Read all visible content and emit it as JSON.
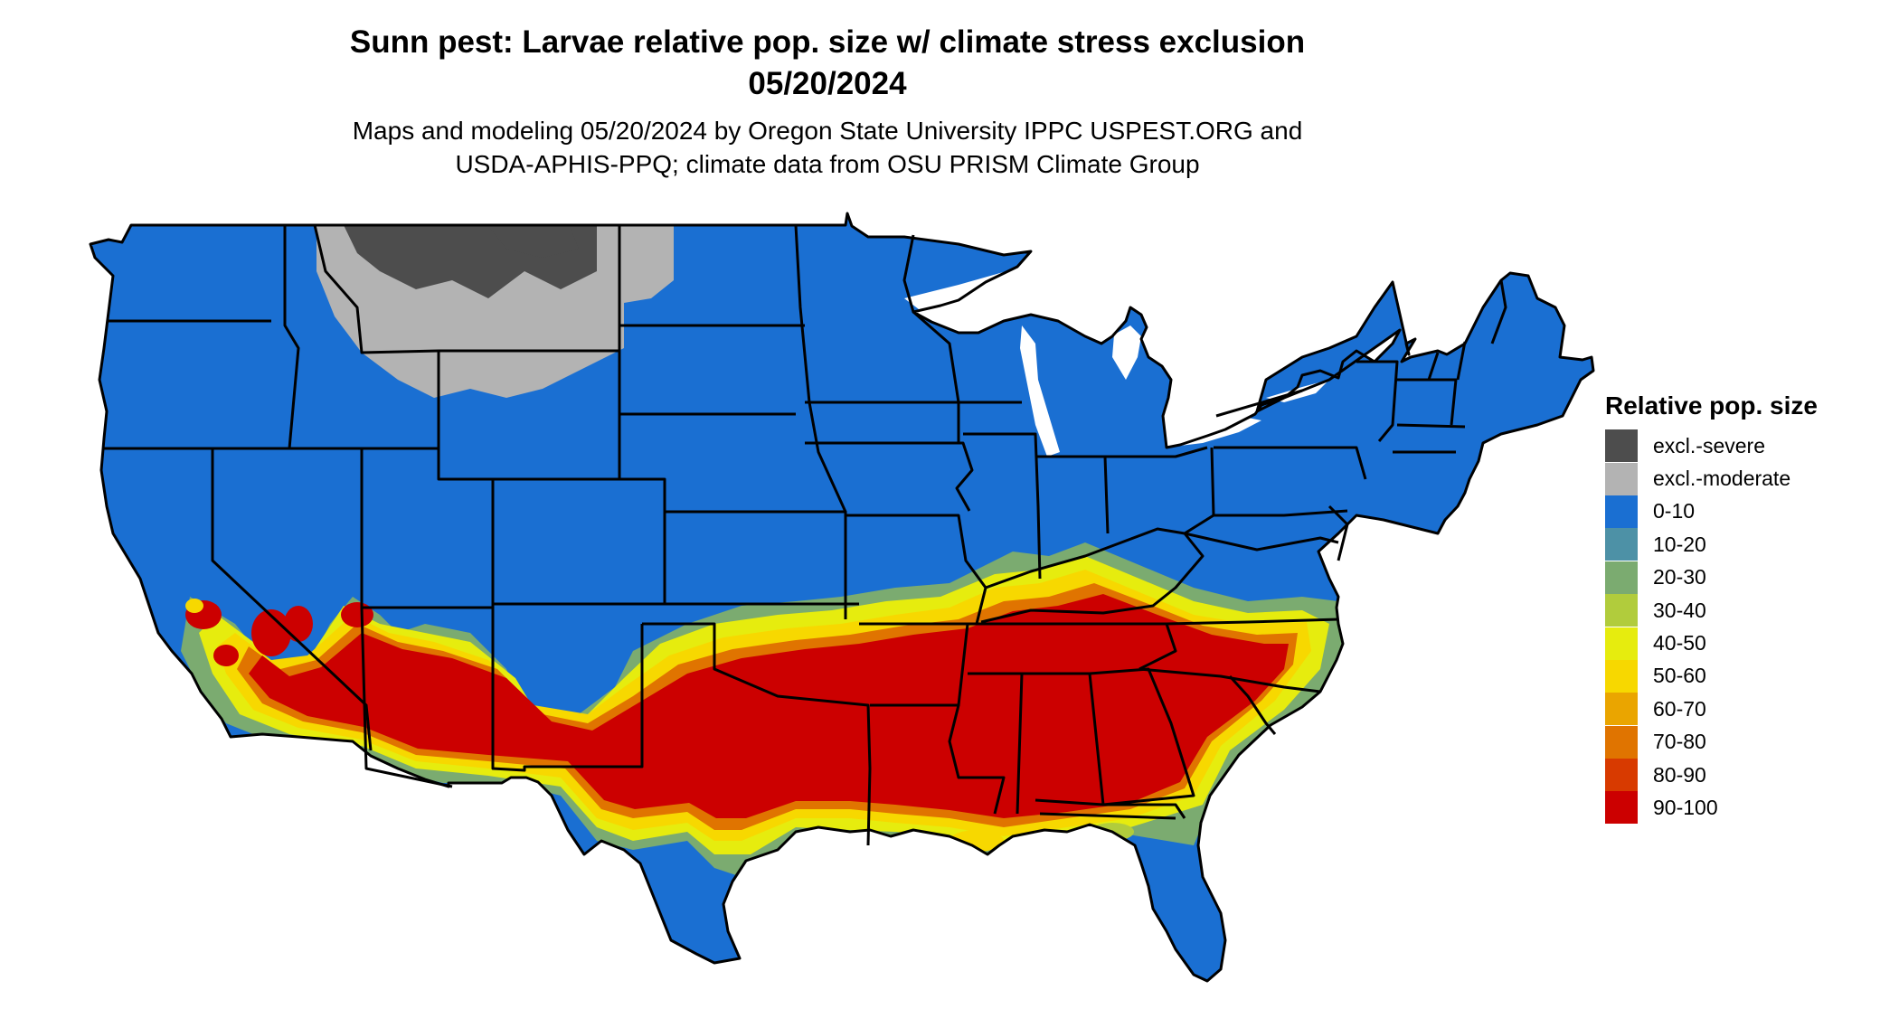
{
  "title": {
    "line1": "Sunn pest: Larvae relative pop. size w/ climate stress exclusion",
    "line2": "05/20/2024"
  },
  "subtitle": {
    "line1": "Maps and modeling 05/20/2024 by Oregon State University IPPC USPEST.ORG and",
    "line2": "USDA-APHIS-PPQ; climate data from OSU PRISM Climate Group"
  },
  "legend": {
    "title": "Relative pop. size",
    "items": [
      {
        "label": "excl.-severe",
        "color": "#4d4d4d"
      },
      {
        "label": "excl.-moderate",
        "color": "#b3b3b3"
      },
      {
        "label": "0-10",
        "color": "#1a6fd2"
      },
      {
        "label": "10-20",
        "color": "#4d91a6"
      },
      {
        "label": "20-30",
        "color": "#7bab70"
      },
      {
        "label": "30-40",
        "color": "#b1cc3c"
      },
      {
        "label": "40-50",
        "color": "#e6ec0e"
      },
      {
        "label": "50-60",
        "color": "#f7d800"
      },
      {
        "label": "60-70",
        "color": "#eaa500"
      },
      {
        "label": "70-80",
        "color": "#e07400"
      },
      {
        "label": "80-90",
        "color": "#d83a00"
      },
      {
        "label": "90-100",
        "color": "#cc0000"
      }
    ]
  }
}
